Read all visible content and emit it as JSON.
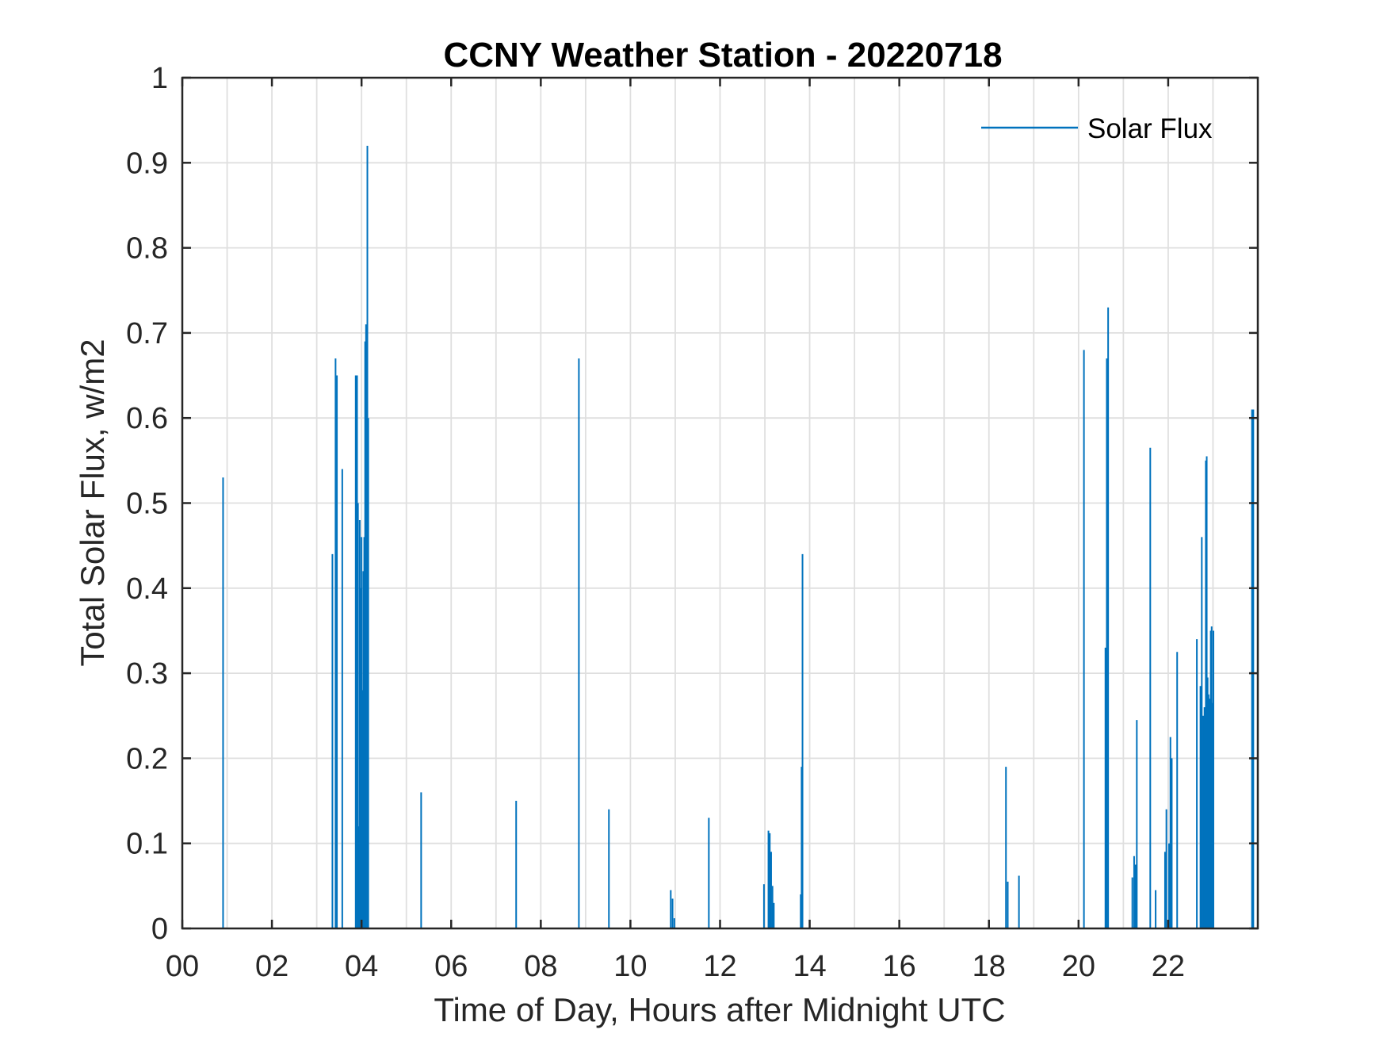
{
  "chart_data": {
    "type": "line",
    "title": "CCNY Weather Station - 20220718",
    "xlabel": "Time of Day, Hours after Midnight UTC",
    "ylabel": "Total Solar Flux, w/m2",
    "xlim": [
      0,
      24
    ],
    "ylim": [
      0,
      1
    ],
    "xticks": [
      0,
      2,
      4,
      6,
      8,
      10,
      12,
      14,
      16,
      18,
      20,
      22
    ],
    "xtick_labels": [
      "00",
      "02",
      "04",
      "06",
      "08",
      "10",
      "12",
      "14",
      "16",
      "18",
      "20",
      "22"
    ],
    "xgrid_minor_step": 1,
    "yticks": [
      0,
      0.1,
      0.2,
      0.3,
      0.4,
      0.5,
      0.6,
      0.7,
      0.8,
      0.9,
      1
    ],
    "ytick_labels": [
      "0",
      "0.1",
      "0.2",
      "0.3",
      "0.4",
      "0.5",
      "0.6",
      "0.7",
      "0.8",
      "0.9",
      "1"
    ],
    "grid": true,
    "legend": {
      "entries": [
        "Solar Flux"
      ],
      "placement": "top-right"
    },
    "series": [
      {
        "name": "Solar Flux",
        "color": "#0072BD",
        "spikes": [
          [
            0.91,
            0.53
          ],
          [
            3.35,
            0.44
          ],
          [
            3.42,
            0.67
          ],
          [
            3.45,
            0.65
          ],
          [
            3.57,
            0.54
          ],
          [
            3.87,
            0.65
          ],
          [
            3.9,
            0.65
          ],
          [
            3.92,
            0.5
          ],
          [
            3.94,
            0.12
          ],
          [
            3.96,
            0.48
          ],
          [
            3.98,
            0.4
          ],
          [
            4.0,
            0.46
          ],
          [
            4.02,
            0.28
          ],
          [
            4.04,
            0.42
          ],
          [
            4.06,
            0.46
          ],
          [
            4.08,
            0.69
          ],
          [
            4.1,
            0.71
          ],
          [
            4.13,
            0.92
          ],
          [
            4.15,
            0.6
          ],
          [
            5.33,
            0.16
          ],
          [
            7.45,
            0.15
          ],
          [
            8.85,
            0.67
          ],
          [
            9.52,
            0.14
          ],
          [
            10.9,
            0.045
          ],
          [
            10.94,
            0.035
          ],
          [
            10.98,
            0.012
          ],
          [
            11.75,
            0.13
          ],
          [
            12.98,
            0.052
          ],
          [
            13.08,
            0.115
          ],
          [
            13.11,
            0.112
          ],
          [
            13.14,
            0.09
          ],
          [
            13.17,
            0.05
          ],
          [
            13.2,
            0.03
          ],
          [
            13.8,
            0.04
          ],
          [
            13.82,
            0.19
          ],
          [
            13.84,
            0.44
          ],
          [
            18.38,
            0.19
          ],
          [
            18.42,
            0.055
          ],
          [
            18.67,
            0.062
          ],
          [
            20.12,
            0.68
          ],
          [
            20.6,
            0.33
          ],
          [
            20.63,
            0.67
          ],
          [
            20.66,
            0.73
          ],
          [
            21.2,
            0.06
          ],
          [
            21.24,
            0.085
          ],
          [
            21.27,
            0.075
          ],
          [
            21.3,
            0.245
          ],
          [
            21.6,
            0.565
          ],
          [
            21.72,
            0.045
          ],
          [
            21.93,
            0.09
          ],
          [
            21.96,
            0.14
          ],
          [
            22.02,
            0.1
          ],
          [
            22.05,
            0.225
          ],
          [
            22.08,
            0.2
          ],
          [
            22.2,
            0.325
          ],
          [
            22.64,
            0.34
          ],
          [
            22.72,
            0.285
          ],
          [
            22.75,
            0.46
          ],
          [
            22.78,
            0.25
          ],
          [
            22.81,
            0.26
          ],
          [
            22.84,
            0.55
          ],
          [
            22.86,
            0.555
          ],
          [
            22.88,
            0.295
          ],
          [
            22.9,
            0.275
          ],
          [
            22.93,
            0.27
          ],
          [
            22.95,
            0.35
          ],
          [
            22.97,
            0.355
          ],
          [
            22.99,
            0.265
          ],
          [
            23.01,
            0.35
          ],
          [
            23.87,
            0.61
          ],
          [
            23.9,
            0.61
          ]
        ]
      }
    ]
  }
}
